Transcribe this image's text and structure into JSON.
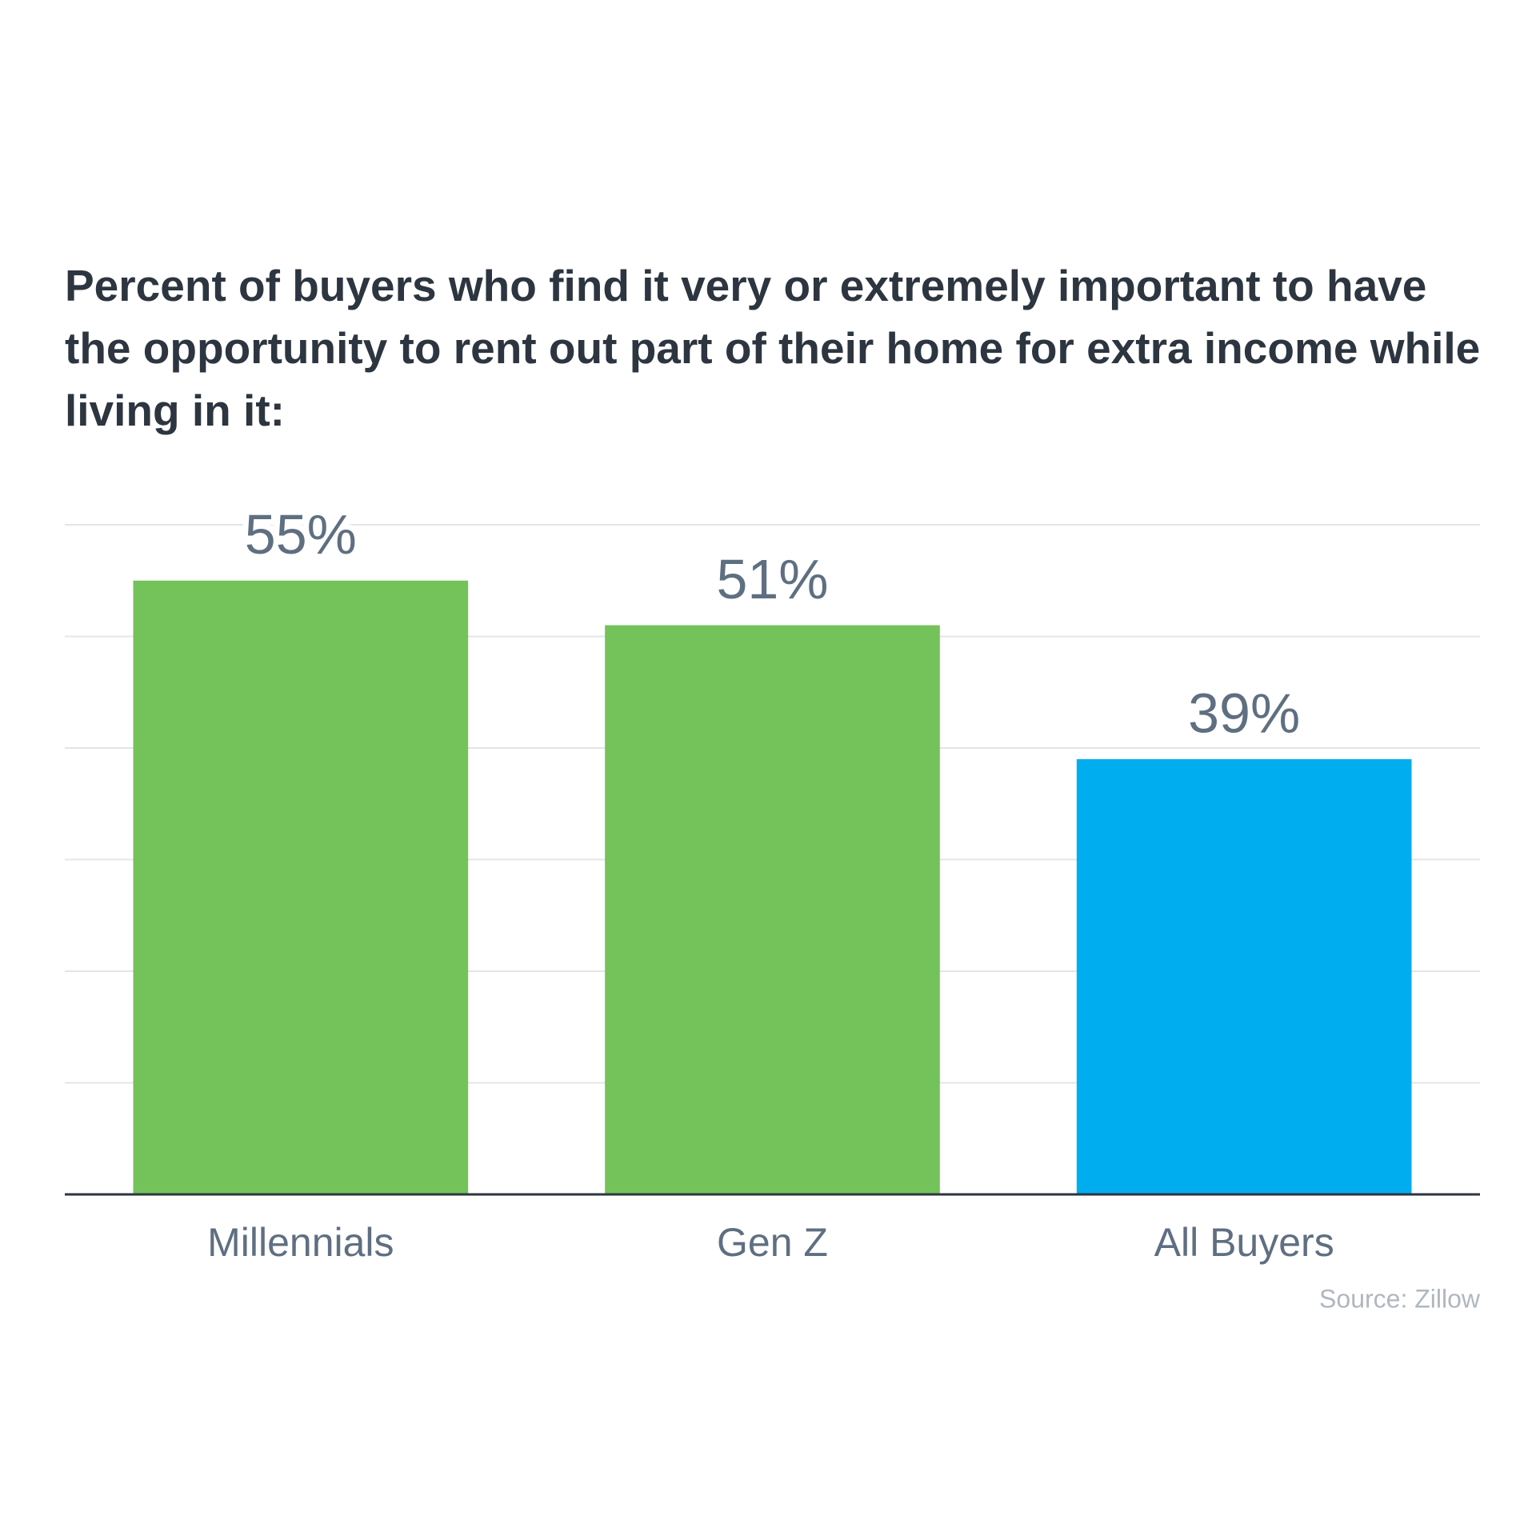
{
  "chart_data": {
    "type": "bar",
    "title": "Percent of buyers who find it very or extremely important to have the opportunity to rent out part of their home for extra income while living in it:",
    "categories": [
      "Millennials",
      "Gen Z",
      "All Buyers"
    ],
    "values": [
      55,
      51,
      39
    ],
    "value_labels": [
      "55%",
      "51%",
      "39%"
    ],
    "colors": [
      "#74c25a",
      "#74c25a",
      "#00aeef"
    ],
    "ylim": [
      0,
      60
    ],
    "yticks": [
      0,
      10,
      20,
      30,
      40,
      50,
      60
    ],
    "grid": true,
    "source": "Source: Zillow"
  }
}
